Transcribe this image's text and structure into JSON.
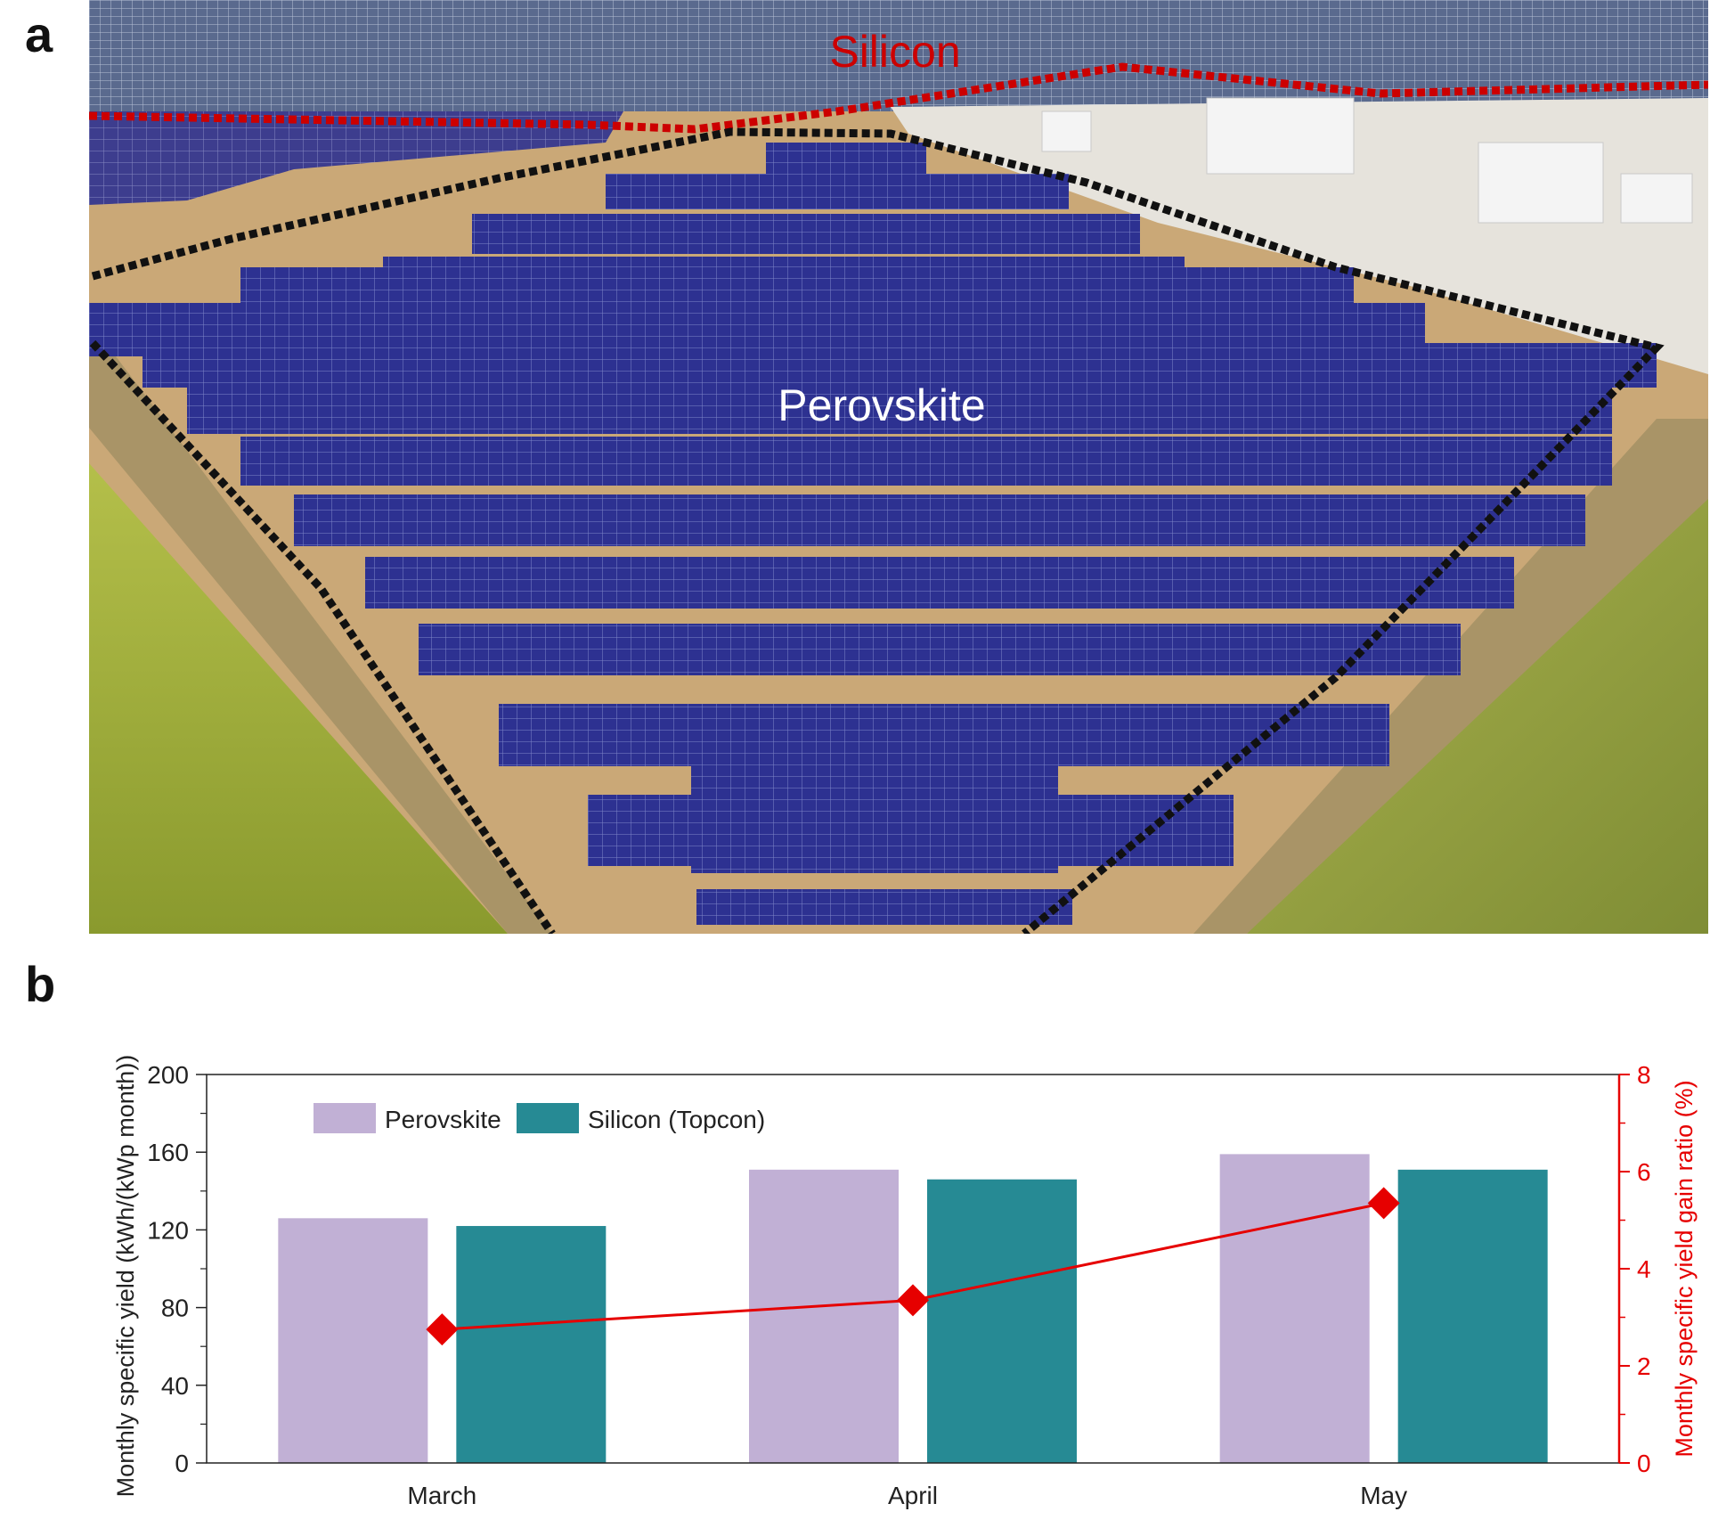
{
  "panels": {
    "a_label": "a",
    "b_label": "b"
  },
  "photo": {
    "silicon_label": "Silicon",
    "perovskite_label": "Perovskite",
    "colors": {
      "silicon_boundary": "#cc0000",
      "perovskite_boundary": "#111111",
      "panel_blue": "#2b2f8f",
      "water": "#9aab3a",
      "soil": "#caa877"
    }
  },
  "chart_data": {
    "type": "bar",
    "categories": [
      "March",
      "April",
      "May"
    ],
    "series": [
      {
        "name": "Perovskite",
        "values": [
          126,
          151,
          159
        ],
        "color": "#c1b0d5"
      },
      {
        "name": "Silicon (Topcon)",
        "values": [
          122,
          146,
          151
        ],
        "color": "#268a94"
      }
    ],
    "line_series": {
      "name": "",
      "values": [
        2.75,
        3.35,
        5.35
      ],
      "color": "#e60000",
      "marker": "diamond",
      "axis": "right"
    },
    "ylabel": "Monthly specific yield (kWh/(kWp month))",
    "ylabel_right": "Monthly specific yield gain ratio (%)",
    "ylim": [
      0,
      200
    ],
    "yticks": [
      "0",
      "40",
      "80",
      "120",
      "160",
      "200"
    ],
    "ylim_right": [
      0,
      8
    ],
    "yticks_right": [
      "0",
      "2",
      "4",
      "6",
      "8"
    ],
    "legend_position": "top-left",
    "grid": false
  }
}
